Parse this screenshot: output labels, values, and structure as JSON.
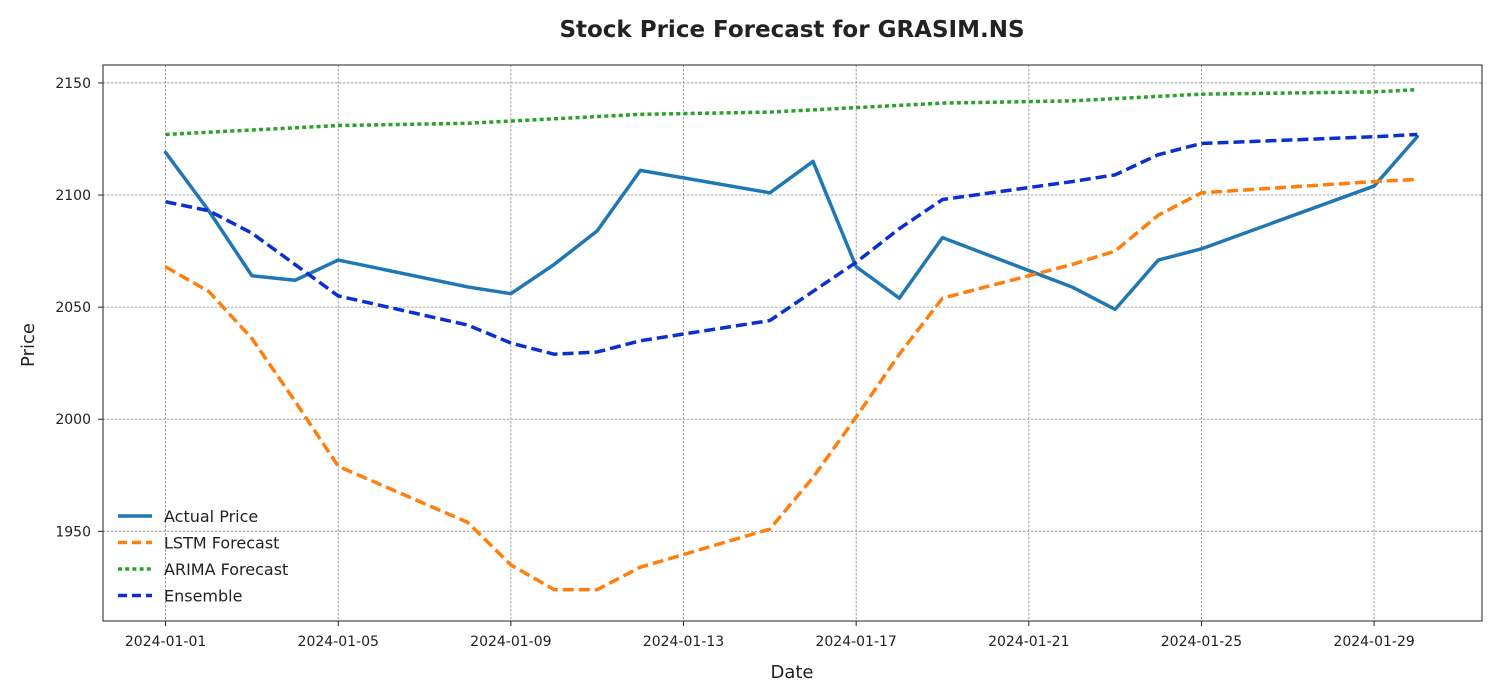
{
  "chart_data": {
    "type": "line",
    "title": "Stock Price Forecast for GRASIM.NS",
    "xlabel": "Date",
    "ylabel": "Price",
    "x_tick_labels": [
      "2024-01-01",
      "2024-01-05",
      "2024-01-09",
      "2024-01-13",
      "2024-01-17",
      "2024-01-21",
      "2024-01-25",
      "2024-01-29"
    ],
    "y_ticks": [
      1950,
      2000,
      2050,
      2100,
      2150
    ],
    "xlim": [
      "2023-12-30.55",
      "2024-01-31.5"
    ],
    "ylim": [
      1910,
      2158
    ],
    "grid": true,
    "legend_position": "lower-left",
    "series": [
      {
        "name": "Actual Price",
        "color": "#1f77b4",
        "dash": "solid",
        "points": [
          [
            "2024-01-01",
            2119
          ],
          [
            "2024-01-02",
            2093
          ],
          [
            "2024-01-03",
            2064
          ],
          [
            "2024-01-04",
            2062
          ],
          [
            "2024-01-05",
            2071
          ],
          [
            "2024-01-08",
            2059
          ],
          [
            "2024-01-09",
            2056
          ],
          [
            "2024-01-10",
            2069
          ],
          [
            "2024-01-11",
            2084
          ],
          [
            "2024-01-12",
            2111
          ],
          [
            "2024-01-15",
            2101
          ],
          [
            "2024-01-16",
            2115
          ],
          [
            "2024-01-17",
            2068
          ],
          [
            "2024-01-18",
            2054
          ],
          [
            "2024-01-19",
            2081
          ],
          [
            "2024-01-22",
            2059
          ],
          [
            "2024-01-23",
            2049
          ],
          [
            "2024-01-24",
            2071
          ],
          [
            "2024-01-25",
            2076
          ],
          [
            "2024-01-29",
            2104
          ],
          [
            "2024-01-30",
            2126
          ]
        ]
      },
      {
        "name": "LSTM Forecast",
        "color": "#ff7f0e",
        "dash": "dashed",
        "points": [
          [
            "2024-01-01",
            2068
          ],
          [
            "2024-01-02",
            2057
          ],
          [
            "2024-01-03",
            2036
          ],
          [
            "2024-01-04",
            2008
          ],
          [
            "2024-01-05",
            1979
          ],
          [
            "2024-01-08",
            1954
          ],
          [
            "2024-01-09",
            1935
          ],
          [
            "2024-01-10",
            1924
          ],
          [
            "2024-01-11",
            1924
          ],
          [
            "2024-01-12",
            1934
          ],
          [
            "2024-01-15",
            1951
          ],
          [
            "2024-01-16",
            1974
          ],
          [
            "2024-01-17",
            2001
          ],
          [
            "2024-01-18",
            2029
          ],
          [
            "2024-01-19",
            2054
          ],
          [
            "2024-01-22",
            2069
          ],
          [
            "2024-01-23",
            2075
          ],
          [
            "2024-01-24",
            2091
          ],
          [
            "2024-01-25",
            2101
          ],
          [
            "2024-01-29",
            2106
          ],
          [
            "2024-01-30",
            2107
          ]
        ]
      },
      {
        "name": "ARIMA Forecast",
        "color": "#2ca02c",
        "dash": "dotted",
        "points": [
          [
            "2024-01-01",
            2127
          ],
          [
            "2024-01-02",
            2128
          ],
          [
            "2024-01-03",
            2129
          ],
          [
            "2024-01-04",
            2130
          ],
          [
            "2024-01-05",
            2131
          ],
          [
            "2024-01-08",
            2132
          ],
          [
            "2024-01-09",
            2133
          ],
          [
            "2024-01-10",
            2134
          ],
          [
            "2024-01-11",
            2135
          ],
          [
            "2024-01-12",
            2136
          ],
          [
            "2024-01-15",
            2137
          ],
          [
            "2024-01-16",
            2138
          ],
          [
            "2024-01-17",
            2139
          ],
          [
            "2024-01-18",
            2140
          ],
          [
            "2024-01-19",
            2141
          ],
          [
            "2024-01-22",
            2142
          ],
          [
            "2024-01-23",
            2143
          ],
          [
            "2024-01-24",
            2144
          ],
          [
            "2024-01-25",
            2145
          ],
          [
            "2024-01-29",
            2146
          ],
          [
            "2024-01-30",
            2147
          ]
        ]
      },
      {
        "name": "Ensemble",
        "color": "#0b2fd1",
        "dash": "dashed",
        "points": [
          [
            "2024-01-01",
            2097
          ],
          [
            "2024-01-02",
            2093
          ],
          [
            "2024-01-03",
            2083
          ],
          [
            "2024-01-04",
            2069
          ],
          [
            "2024-01-05",
            2055
          ],
          [
            "2024-01-08",
            2042
          ],
          [
            "2024-01-09",
            2034
          ],
          [
            "2024-01-10",
            2029
          ],
          [
            "2024-01-11",
            2030
          ],
          [
            "2024-01-12",
            2035
          ],
          [
            "2024-01-15",
            2044
          ],
          [
            "2024-01-16",
            2057
          ],
          [
            "2024-01-17",
            2070
          ],
          [
            "2024-01-18",
            2085
          ],
          [
            "2024-01-19",
            2098
          ],
          [
            "2024-01-22",
            2106
          ],
          [
            "2024-01-23",
            2109
          ],
          [
            "2024-01-24",
            2118
          ],
          [
            "2024-01-25",
            2123
          ],
          [
            "2024-01-29",
            2126
          ],
          [
            "2024-01-30",
            2127
          ]
        ]
      }
    ]
  }
}
